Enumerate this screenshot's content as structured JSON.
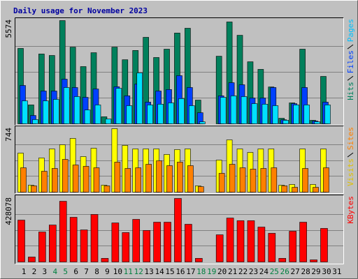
{
  "chart_data": [
    {
      "type": "bar",
      "title": "Daily usage for November 2023",
      "ylim": [
        0,
        5574
      ],
      "yticks": [
        5574
      ],
      "series": [
        {
          "name": "Hits",
          "color": "#00805c",
          "values": [
            4070,
            1020,
            3770,
            3690,
            5574,
            4140,
            3090,
            3840,
            380,
            4140,
            3460,
            3960,
            4670,
            3580,
            4030,
            4900,
            5160,
            1280,
            0,
            3650,
            5500,
            4780,
            3350,
            2940,
            1990,
            300,
            1130,
            4030,
            190,
            2560,
            0
          ]
        },
        {
          "name": "Files",
          "color": "#0040ff",
          "values": [
            2070,
            450,
            1770,
            1770,
            2410,
            1960,
            1430,
            1880,
            0,
            2000,
            1510,
            2150,
            1170,
            1770,
            1850,
            2600,
            1960,
            600,
            0,
            1510,
            2220,
            2110,
            1390,
            1390,
            1960,
            220,
            1090,
            1960,
            150,
            1170,
            0
          ]
        },
        {
          "name": "Pages",
          "color": "#00e0ff",
          "values": [
            1240,
            230,
            1240,
            1320,
            1960,
            1470,
            750,
            1020,
            260,
            1920,
            980,
            2750,
            1020,
            1060,
            1130,
            1360,
            980,
            110,
            0,
            1430,
            1510,
            1470,
            1090,
            1060,
            980,
            190,
            1020,
            1020,
            110,
            1020,
            0
          ]
        }
      ]
    },
    {
      "type": "bar",
      "ylim": [
        0,
        744
      ],
      "yticks": [
        744
      ],
      "series": [
        {
          "name": "Visits",
          "color": "#ffff00",
          "values": [
            458,
            82,
            401,
            507,
            556,
            630,
            417,
            515,
            82,
            744,
            548,
            507,
            507,
            507,
            442,
            499,
            507,
            74,
            0,
            376,
            613,
            507,
            466,
            507,
            507,
            82,
            90,
            507,
            90,
            507,
            0
          ]
        },
        {
          "name": "Sites",
          "color": "#ff8000",
          "values": [
            286,
            74,
            245,
            278,
            384,
            319,
            303,
            286,
            74,
            352,
            278,
            286,
            327,
            368,
            311,
            352,
            311,
            65,
            0,
            221,
            327,
            286,
            270,
            278,
            286,
            74,
            57,
            278,
            57,
            286,
            0
          ]
        }
      ]
    },
    {
      "type": "bar",
      "ylim": [
        0,
        428078
      ],
      "yticks": [
        428078
      ],
      "categories": [
        "1",
        "2",
        "3",
        "4",
        "5",
        "6",
        "7",
        "8",
        "9",
        "10",
        "11",
        "12",
        "13",
        "14",
        "15",
        "16",
        "17",
        "18",
        "19",
        "20",
        "21",
        "22",
        "23",
        "24",
        "25",
        "26",
        "27",
        "28",
        "29",
        "30",
        "31"
      ],
      "category_colors": [
        "#000000",
        "#000000",
        "#000000",
        "#008040",
        "#008040",
        "#000000",
        "#000000",
        "#000000",
        "#000000",
        "#000000",
        "#008040",
        "#008040",
        "#000000",
        "#000000",
        "#000000",
        "#000000",
        "#000000",
        "#008040",
        "#008040",
        "#000000",
        "#000000",
        "#000000",
        "#000000",
        "#000000",
        "#008040",
        "#008040",
        "#000000",
        "#000000",
        "#000000",
        "#000000",
        "#000000"
      ],
      "series": [
        {
          "name": "KBytes",
          "color": "#ff0000",
          "values": [
            282000,
            33000,
            202000,
            249000,
            409000,
            301000,
            216000,
            320000,
            24000,
            263000,
            198000,
            287000,
            212000,
            268000,
            268000,
            428078,
            254000,
            24000,
            0,
            183000,
            296000,
            278000,
            278000,
            235000,
            193000,
            24000,
            207000,
            268000,
            14000,
            226000,
            0
          ]
        }
      ]
    }
  ]
}
